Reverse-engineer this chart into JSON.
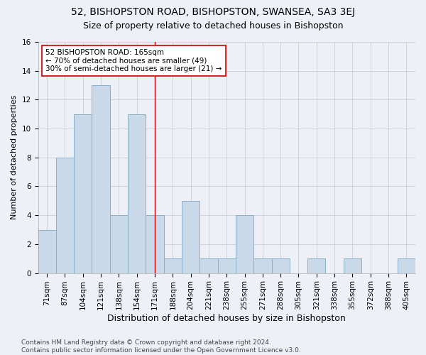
{
  "title": "52, BISHOPSTON ROAD, BISHOPSTON, SWANSEA, SA3 3EJ",
  "subtitle": "Size of property relative to detached houses in Bishopston",
  "xlabel": "Distribution of detached houses by size in Bishopston",
  "ylabel": "Number of detached properties",
  "categories": [
    "71sqm",
    "87sqm",
    "104sqm",
    "121sqm",
    "138sqm",
    "154sqm",
    "171sqm",
    "188sqm",
    "204sqm",
    "221sqm",
    "238sqm",
    "255sqm",
    "271sqm",
    "288sqm",
    "305sqm",
    "321sqm",
    "338sqm",
    "355sqm",
    "372sqm",
    "388sqm",
    "405sqm"
  ],
  "values": [
    3,
    8,
    11,
    13,
    4,
    11,
    4,
    1,
    5,
    1,
    1,
    4,
    1,
    1,
    0,
    1,
    0,
    1,
    0,
    0,
    1
  ],
  "bar_color": "#c9d9ea",
  "bar_edgecolor": "#8aafc8",
  "vline_index": 6,
  "vline_color": "#cc0000",
  "annotation_line1": "52 BISHOPSTON ROAD: 165sqm",
  "annotation_line2": "← 70% of detached houses are smaller (49)",
  "annotation_line3": "30% of semi-detached houses are larger (21) →",
  "annotation_box_facecolor": "#ffffff",
  "annotation_box_edgecolor": "#cc0000",
  "ylim": [
    0,
    16
  ],
  "yticks": [
    0,
    2,
    4,
    6,
    8,
    10,
    12,
    14,
    16
  ],
  "grid_color": "#c8cfd8",
  "background_color": "#edf1f7",
  "footnote": "Contains HM Land Registry data © Crown copyright and database right 2024.\nContains public sector information licensed under the Open Government Licence v3.0.",
  "title_fontsize": 10,
  "subtitle_fontsize": 9,
  "xlabel_fontsize": 9,
  "ylabel_fontsize": 8,
  "tick_fontsize": 7.5,
  "annotation_fontsize": 7.5,
  "footnote_fontsize": 6.5
}
